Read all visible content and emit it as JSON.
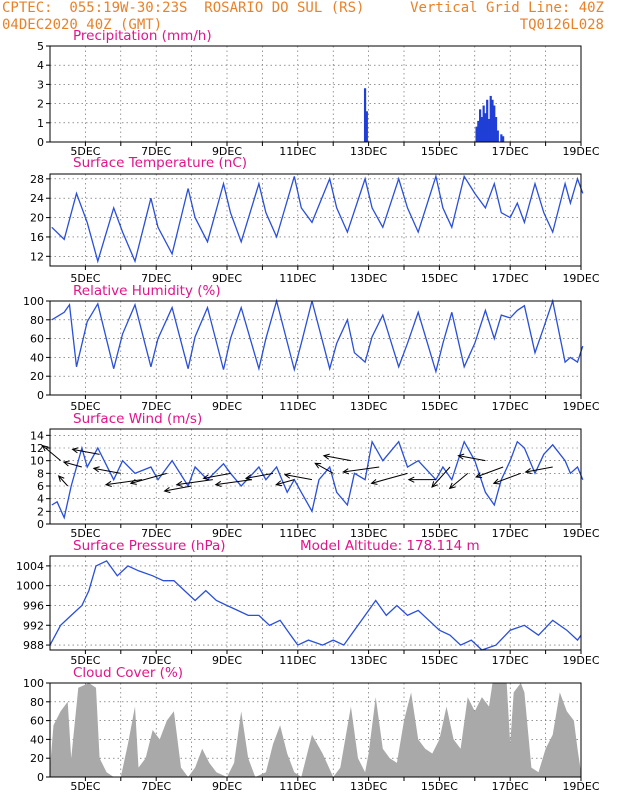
{
  "header": {
    "line1": "CPTEC:  055:19W-30:23S  ROSARIO DO SUL (RS)",
    "line2": "04DEC2020 40Z (GMT)",
    "vgrid": "Vertical Grid Line: 40Z",
    "code": "TQ0126L028"
  },
  "colors": {
    "header": "#e8822a",
    "title": "#e0158a",
    "line": "#2a4fd8",
    "bar": "#1f3fd6",
    "cloud": "#a9a9a9",
    "grid": "#555555"
  },
  "date_labels": [
    "5DEC",
    "7DEC",
    "9DEC",
    "11DEC",
    "13DEC",
    "15DEC",
    "17DEC",
    "19DEC"
  ],
  "chart_data": [
    {
      "id": "precip",
      "type": "bar",
      "title": "Precipitation (mm/h)",
      "ylim": [
        0,
        5
      ],
      "yticks": [
        0,
        1,
        2,
        3,
        4,
        5
      ],
      "points": [
        [
          12.9,
          2.8
        ],
        [
          12.95,
          1.6
        ],
        [
          16.05,
          0.8
        ],
        [
          16.1,
          1.1
        ],
        [
          16.15,
          1.7
        ],
        [
          16.2,
          1.3
        ],
        [
          16.25,
          1.9
        ],
        [
          16.3,
          1.5
        ],
        [
          16.35,
          2.2
        ],
        [
          16.4,
          1.2
        ],
        [
          16.45,
          2.4
        ],
        [
          16.5,
          2.2
        ],
        [
          16.55,
          1.9
        ],
        [
          16.6,
          1.3
        ],
        [
          16.65,
          0.6
        ],
        [
          16.75,
          0.4
        ],
        [
          16.8,
          0.3
        ]
      ]
    },
    {
      "id": "temp",
      "type": "line",
      "title": "Surface Temperature (nC)",
      "ylim": [
        10,
        29
      ],
      "yticks": [
        12,
        16,
        20,
        24,
        28
      ],
      "points": [
        [
          4.05,
          18
        ],
        [
          4.4,
          15.5
        ],
        [
          4.75,
          25
        ],
        [
          5.05,
          19
        ],
        [
          5.35,
          11
        ],
        [
          5.8,
          22
        ],
        [
          6.05,
          17
        ],
        [
          6.4,
          11
        ],
        [
          6.85,
          24
        ],
        [
          7.05,
          18
        ],
        [
          7.45,
          12.5
        ],
        [
          7.9,
          26
        ],
        [
          8.1,
          20
        ],
        [
          8.45,
          15
        ],
        [
          8.9,
          27
        ],
        [
          9.1,
          21
        ],
        [
          9.4,
          15
        ],
        [
          9.9,
          27
        ],
        [
          10.1,
          21
        ],
        [
          10.4,
          16
        ],
        [
          10.9,
          28.5
        ],
        [
          11.1,
          22
        ],
        [
          11.4,
          19
        ],
        [
          11.9,
          28
        ],
        [
          12.1,
          22
        ],
        [
          12.4,
          17
        ],
        [
          12.9,
          28
        ],
        [
          13.1,
          22
        ],
        [
          13.4,
          18
        ],
        [
          13.85,
          28
        ],
        [
          14.1,
          22
        ],
        [
          14.4,
          17
        ],
        [
          14.9,
          28.5
        ],
        [
          15.1,
          22
        ],
        [
          15.35,
          18
        ],
        [
          15.7,
          28.5
        ],
        [
          16.0,
          25
        ],
        [
          16.3,
          22
        ],
        [
          16.55,
          27
        ],
        [
          16.75,
          21
        ],
        [
          17.0,
          20
        ],
        [
          17.2,
          23
        ],
        [
          17.4,
          19
        ],
        [
          17.7,
          27
        ],
        [
          17.95,
          21
        ],
        [
          18.2,
          17
        ],
        [
          18.55,
          27
        ],
        [
          18.7,
          23
        ],
        [
          18.9,
          28
        ],
        [
          19.05,
          25
        ]
      ]
    },
    {
      "id": "rh",
      "type": "line",
      "title": "Relative Humidity (%)",
      "ylim": [
        0,
        100
      ],
      "yticks": [
        0,
        20,
        40,
        60,
        80,
        100
      ],
      "points": [
        [
          4.05,
          80
        ],
        [
          4.4,
          88
        ],
        [
          4.55,
          96
        ],
        [
          4.75,
          30
        ],
        [
          5.05,
          78
        ],
        [
          5.35,
          97
        ],
        [
          5.8,
          28
        ],
        [
          6.05,
          65
        ],
        [
          6.4,
          96
        ],
        [
          6.85,
          30
        ],
        [
          7.05,
          60
        ],
        [
          7.45,
          93
        ],
        [
          7.9,
          28
        ],
        [
          8.1,
          62
        ],
        [
          8.45,
          93
        ],
        [
          8.9,
          27
        ],
        [
          9.1,
          60
        ],
        [
          9.4,
          93
        ],
        [
          9.9,
          28
        ],
        [
          10.1,
          60
        ],
        [
          10.4,
          100
        ],
        [
          10.9,
          27
        ],
        [
          11.1,
          55
        ],
        [
          11.4,
          100
        ],
        [
          11.9,
          28
        ],
        [
          12.1,
          55
        ],
        [
          12.4,
          80
        ],
        [
          12.6,
          45
        ],
        [
          12.9,
          35
        ],
        [
          13.1,
          62
        ],
        [
          13.4,
          85
        ],
        [
          13.85,
          30
        ],
        [
          14.1,
          55
        ],
        [
          14.4,
          88
        ],
        [
          14.9,
          25
        ],
        [
          15.1,
          55
        ],
        [
          15.35,
          88
        ],
        [
          15.7,
          30
        ],
        [
          16.0,
          55
        ],
        [
          16.3,
          90
        ],
        [
          16.55,
          60
        ],
        [
          16.75,
          85
        ],
        [
          17.0,
          82
        ],
        [
          17.2,
          90
        ],
        [
          17.4,
          95
        ],
        [
          17.7,
          45
        ],
        [
          17.95,
          72
        ],
        [
          18.2,
          100
        ],
        [
          18.55,
          35
        ],
        [
          18.7,
          40
        ],
        [
          18.9,
          35
        ],
        [
          19.05,
          52
        ]
      ]
    },
    {
      "id": "wind",
      "type": "line",
      "title": "Surface Wind (m/s)",
      "ylim": [
        0,
        15
      ],
      "yticks": [
        0,
        2,
        4,
        6,
        8,
        10,
        12,
        14
      ],
      "points": [
        [
          4.05,
          3
        ],
        [
          4.2,
          3.5
        ],
        [
          4.4,
          1
        ],
        [
          4.6,
          6
        ],
        [
          4.9,
          12
        ],
        [
          5.05,
          9
        ],
        [
          5.35,
          12
        ],
        [
          5.8,
          7
        ],
        [
          6.05,
          10
        ],
        [
          6.4,
          8
        ],
        [
          6.85,
          9
        ],
        [
          7.05,
          7
        ],
        [
          7.45,
          10
        ],
        [
          7.9,
          6
        ],
        [
          8.1,
          9
        ],
        [
          8.45,
          7
        ],
        [
          8.9,
          9.5
        ],
        [
          9.1,
          8
        ],
        [
          9.4,
          6
        ],
        [
          9.9,
          9
        ],
        [
          10.1,
          7
        ],
        [
          10.4,
          9
        ],
        [
          10.7,
          5
        ],
        [
          10.9,
          7
        ],
        [
          11.1,
          5
        ],
        [
          11.4,
          2
        ],
        [
          11.6,
          7
        ],
        [
          11.9,
          9
        ],
        [
          12.1,
          5
        ],
        [
          12.4,
          3
        ],
        [
          12.6,
          8
        ],
        [
          12.9,
          7
        ],
        [
          13.1,
          13
        ],
        [
          13.4,
          10
        ],
        [
          13.85,
          13
        ],
        [
          14.1,
          9
        ],
        [
          14.4,
          10
        ],
        [
          14.9,
          7
        ],
        [
          15.1,
          9
        ],
        [
          15.35,
          7
        ],
        [
          15.7,
          13
        ],
        [
          16.0,
          10
        ],
        [
          16.3,
          5
        ],
        [
          16.55,
          3
        ],
        [
          16.75,
          7
        ],
        [
          17.0,
          10
        ],
        [
          17.2,
          13
        ],
        [
          17.4,
          12
        ],
        [
          17.7,
          8
        ],
        [
          17.95,
          11
        ],
        [
          18.2,
          12.5
        ],
        [
          18.55,
          10
        ],
        [
          18.7,
          8
        ],
        [
          18.9,
          9
        ],
        [
          19.05,
          7
        ]
      ],
      "vectors": [
        [
          4.3,
          10,
          -2,
          3
        ],
        [
          4.5,
          6,
          -1,
          2
        ],
        [
          4.9,
          9,
          -2,
          1
        ],
        [
          5.4,
          11,
          -3,
          1
        ],
        [
          6.0,
          8,
          -3,
          1
        ],
        [
          6.6,
          7,
          -4,
          -1
        ],
        [
          7.3,
          8,
          -4,
          -2
        ],
        [
          8.0,
          6,
          -3,
          -1
        ],
        [
          8.6,
          7,
          -4,
          -1
        ],
        [
          9.1,
          8,
          -3,
          -1
        ],
        [
          9.7,
          7,
          -4,
          -1
        ],
        [
          10.3,
          8,
          -3,
          -1
        ],
        [
          10.9,
          7,
          -2,
          -1
        ],
        [
          11.4,
          7,
          -3,
          1
        ],
        [
          12.0,
          8,
          -2,
          2
        ],
        [
          12.5,
          10,
          -3,
          1
        ],
        [
          13.3,
          9,
          -4,
          -1
        ],
        [
          14.1,
          8,
          -4,
          -2
        ],
        [
          14.9,
          7,
          -3,
          0
        ],
        [
          15.3,
          9,
          -2,
          -4
        ],
        [
          15.8,
          8,
          -2,
          -3
        ],
        [
          16.3,
          10,
          -3,
          1
        ],
        [
          16.8,
          9,
          -3,
          -2
        ],
        [
          17.3,
          8,
          -3,
          -2
        ],
        [
          18.2,
          9,
          -3,
          -1
        ]
      ]
    },
    {
      "id": "pres",
      "type": "line",
      "title": "Surface Pressure (hPa)",
      "extra": "Model Altitude: 178.114 m",
      "ylim": [
        987,
        1006
      ],
      "yticks": [
        988,
        992,
        996,
        1000,
        1004
      ],
      "points": [
        [
          4.0,
          988
        ],
        [
          4.3,
          992
        ],
        [
          4.6,
          994
        ],
        [
          4.9,
          996
        ],
        [
          5.1,
          999
        ],
        [
          5.3,
          1004
        ],
        [
          5.6,
          1005
        ],
        [
          5.9,
          1002
        ],
        [
          6.2,
          1004
        ],
        [
          6.5,
          1003
        ],
        [
          6.9,
          1002
        ],
        [
          7.2,
          1001
        ],
        [
          7.5,
          1001
        ],
        [
          7.8,
          999
        ],
        [
          8.1,
          997
        ],
        [
          8.4,
          999
        ],
        [
          8.7,
          997
        ],
        [
          9.0,
          996
        ],
        [
          9.3,
          995
        ],
        [
          9.6,
          994
        ],
        [
          9.9,
          994
        ],
        [
          10.2,
          992
        ],
        [
          10.5,
          993
        ],
        [
          10.8,
          990
        ],
        [
          11.0,
          988
        ],
        [
          11.3,
          989
        ],
        [
          11.7,
          988
        ],
        [
          12.0,
          989
        ],
        [
          12.3,
          988
        ],
        [
          12.6,
          991
        ],
        [
          12.9,
          994
        ],
        [
          13.2,
          997
        ],
        [
          13.5,
          994
        ],
        [
          13.8,
          996
        ],
        [
          14.1,
          994
        ],
        [
          14.4,
          995
        ],
        [
          14.7,
          993
        ],
        [
          15.0,
          991
        ],
        [
          15.3,
          990
        ],
        [
          15.6,
          988
        ],
        [
          15.9,
          989
        ],
        [
          16.2,
          987
        ],
        [
          16.6,
          988
        ],
        [
          17.0,
          991
        ],
        [
          17.4,
          992
        ],
        [
          17.8,
          990
        ],
        [
          18.2,
          993
        ],
        [
          18.6,
          991
        ],
        [
          18.9,
          989
        ],
        [
          19.0,
          990
        ]
      ]
    },
    {
      "id": "cloud",
      "type": "area",
      "title": "Cloud Cover (%)",
      "ylim": [
        0,
        100
      ],
      "yticks": [
        0,
        20,
        40,
        60,
        80,
        100
      ],
      "points": [
        [
          4.0,
          10
        ],
        [
          4.1,
          55
        ],
        [
          4.3,
          70
        ],
        [
          4.5,
          80
        ],
        [
          4.6,
          20
        ],
        [
          4.8,
          95
        ],
        [
          5.1,
          100
        ],
        [
          5.3,
          95
        ],
        [
          5.4,
          20
        ],
        [
          5.6,
          5
        ],
        [
          5.8,
          0
        ],
        [
          6.0,
          0
        ],
        [
          6.2,
          35
        ],
        [
          6.4,
          75
        ],
        [
          6.5,
          10
        ],
        [
          6.7,
          20
        ],
        [
          6.9,
          50
        ],
        [
          7.1,
          40
        ],
        [
          7.3,
          60
        ],
        [
          7.5,
          70
        ],
        [
          7.7,
          10
        ],
        [
          7.9,
          0
        ],
        [
          8.1,
          10
        ],
        [
          8.3,
          30
        ],
        [
          8.5,
          15
        ],
        [
          8.7,
          5
        ],
        [
          9.0,
          0
        ],
        [
          9.2,
          15
        ],
        [
          9.4,
          70
        ],
        [
          9.6,
          20
        ],
        [
          9.8,
          0
        ],
        [
          10.1,
          5
        ],
        [
          10.3,
          35
        ],
        [
          10.5,
          55
        ],
        [
          10.7,
          25
        ],
        [
          10.9,
          5
        ],
        [
          11.1,
          0
        ],
        [
          11.4,
          45
        ],
        [
          11.7,
          25
        ],
        [
          12.0,
          0
        ],
        [
          12.2,
          10
        ],
        [
          12.5,
          75
        ],
        [
          12.7,
          20
        ],
        [
          12.9,
          5
        ],
        [
          13.0,
          25
        ],
        [
          13.2,
          85
        ],
        [
          13.4,
          30
        ],
        [
          13.6,
          20
        ],
        [
          13.8,
          15
        ],
        [
          14.0,
          60
        ],
        [
          14.2,
          90
        ],
        [
          14.4,
          40
        ],
        [
          14.6,
          30
        ],
        [
          14.8,
          25
        ],
        [
          15.0,
          40
        ],
        [
          15.2,
          75
        ],
        [
          15.4,
          40
        ],
        [
          15.6,
          30
        ],
        [
          15.8,
          85
        ],
        [
          16.0,
          70
        ],
        [
          16.2,
          85
        ],
        [
          16.4,
          75
        ],
        [
          16.5,
          100
        ],
        [
          16.9,
          100
        ],
        [
          17.0,
          35
        ],
        [
          17.1,
          90
        ],
        [
          17.3,
          100
        ],
        [
          17.4,
          90
        ],
        [
          17.6,
          10
        ],
        [
          17.8,
          5
        ],
        [
          18.0,
          30
        ],
        [
          18.2,
          45
        ],
        [
          18.4,
          90
        ],
        [
          18.6,
          70
        ],
        [
          18.8,
          60
        ],
        [
          18.9,
          30
        ],
        [
          19.0,
          5
        ]
      ]
    }
  ]
}
